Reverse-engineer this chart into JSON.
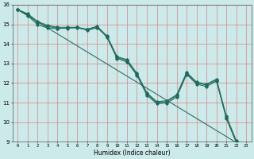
{
  "title": "",
  "xlabel": "Humidex (Indice chaleur)",
  "ylabel": "",
  "xlim": [
    -0.5,
    23.5
  ],
  "ylim": [
    9,
    16
  ],
  "xticks": [
    0,
    1,
    2,
    3,
    4,
    5,
    6,
    7,
    8,
    9,
    10,
    11,
    12,
    13,
    14,
    15,
    16,
    17,
    18,
    19,
    20,
    21,
    22,
    23
  ],
  "yticks": [
    9,
    10,
    11,
    12,
    13,
    14,
    15,
    16
  ],
  "bg_color": "#cceaea",
  "line_color": "#1e6b5e",
  "grid_color": "#e08080",
  "lines": [
    {
      "x": [
        0,
        1,
        2,
        3,
        4,
        5,
        6,
        7,
        8,
        9,
        10,
        11,
        12,
        13,
        14,
        15,
        16,
        17,
        18,
        19,
        20,
        21,
        22,
        23
      ],
      "y": [
        15.75,
        15.55,
        15.15,
        14.95,
        14.85,
        14.85,
        14.85,
        14.75,
        14.9,
        14.4,
        13.35,
        13.2,
        12.5,
        11.5,
        11.05,
        11.1,
        11.4,
        12.55,
        12.05,
        11.95,
        12.2,
        10.3,
        9.05,
        8.7
      ],
      "marker": true
    },
    {
      "x": [
        0,
        1,
        2,
        3,
        4,
        5,
        6,
        7,
        8,
        9,
        10,
        11,
        12,
        13,
        14,
        15,
        16,
        17,
        18,
        19,
        20,
        21,
        22,
        23
      ],
      "y": [
        15.75,
        15.5,
        15.1,
        14.9,
        14.8,
        14.8,
        14.85,
        14.7,
        14.82,
        14.38,
        13.3,
        13.15,
        12.45,
        11.45,
        11.0,
        11.05,
        11.35,
        12.5,
        12.0,
        11.9,
        12.15,
        10.25,
        9.0,
        8.65
      ],
      "marker": true
    },
    {
      "x": [
        0,
        1,
        2,
        3,
        4,
        5,
        6,
        7,
        8,
        9,
        10,
        11,
        12,
        13,
        14,
        15,
        16,
        17,
        18,
        19,
        20,
        21,
        22,
        23
      ],
      "y": [
        15.75,
        15.45,
        14.98,
        14.82,
        14.78,
        14.82,
        14.82,
        14.72,
        14.88,
        14.32,
        13.25,
        13.08,
        12.4,
        11.38,
        10.95,
        10.98,
        11.28,
        12.44,
        11.95,
        11.82,
        12.1,
        10.18,
        8.95,
        8.58
      ],
      "marker": true
    },
    {
      "x": [
        0,
        23
      ],
      "y": [
        15.75,
        8.65
      ],
      "marker": false
    }
  ]
}
